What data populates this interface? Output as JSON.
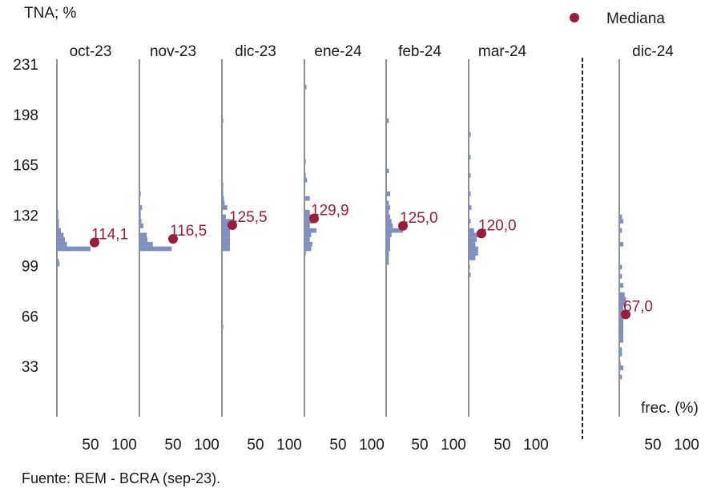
{
  "chart_data": {
    "type": "bar",
    "orientation": "horizontal-histogram",
    "ylabel": "TNA; %",
    "xlabel": "frec. (%)",
    "source": "Fuente: REM - BCRA (sep-23).",
    "y_ticks": [
      33,
      66,
      99,
      132,
      165,
      198,
      231
    ],
    "ylim": [
      0,
      231
    ],
    "x_ticks": [
      50,
      100
    ],
    "xlim": [
      0,
      100
    ],
    "legend": {
      "label": "Mediana",
      "position": "top-right"
    },
    "colors": {
      "bar": "#7f8fbe",
      "median": "#9b1b3d",
      "axis": "#222222"
    },
    "bin_width": 3,
    "panels": [
      {
        "label": "oct-23",
        "median": 114.1,
        "median_label": "114,1",
        "bins": [
          [
            100,
            4
          ],
          [
            102,
            3
          ],
          [
            110,
            50
          ],
          [
            113,
            15
          ],
          [
            116,
            12
          ],
          [
            119,
            10
          ],
          [
            122,
            6
          ],
          [
            125,
            3
          ],
          [
            128,
            3
          ],
          [
            131,
            2
          ],
          [
            134,
            2
          ]
        ]
      },
      {
        "label": "nov-23",
        "median": 116.5,
        "median_label": "116,5",
        "bins": [
          [
            110,
            48
          ],
          [
            113,
            20
          ],
          [
            116,
            12
          ],
          [
            119,
            11
          ],
          [
            125,
            6
          ],
          [
            128,
            3
          ],
          [
            131,
            2
          ],
          [
            134,
            2
          ],
          [
            137,
            4
          ],
          [
            146,
            2
          ]
        ]
      },
      {
        "label": "dic-23",
        "median": 125.5,
        "median_label": "125,5",
        "bins": [
          [
            59,
            2
          ],
          [
            110,
            12
          ],
          [
            113,
            12
          ],
          [
            116,
            12
          ],
          [
            119,
            12
          ],
          [
            122,
            12
          ],
          [
            125,
            10
          ],
          [
            128,
            18
          ],
          [
            131,
            6
          ],
          [
            137,
            8
          ],
          [
            140,
            4
          ],
          [
            143,
            3
          ],
          [
            146,
            2
          ],
          [
            149,
            2
          ],
          [
            152,
            2
          ],
          [
            194,
            2
          ]
        ]
      },
      {
        "label": "ene-24",
        "median": 129.9,
        "median_label": "129,9",
        "bins": [
          [
            107,
            2
          ],
          [
            110,
            10
          ],
          [
            113,
            12
          ],
          [
            116,
            8
          ],
          [
            119,
            10
          ],
          [
            122,
            18
          ],
          [
            125,
            8
          ],
          [
            128,
            12
          ],
          [
            131,
            14
          ],
          [
            134,
            8
          ],
          [
            143,
            8
          ],
          [
            155,
            4
          ],
          [
            158,
            2
          ],
          [
            167,
            2
          ],
          [
            216,
            3
          ]
        ]
      },
      {
        "label": "feb-24",
        "median": 125.0,
        "median_label": "125,0",
        "bins": [
          [
            101,
            4
          ],
          [
            104,
            4
          ],
          [
            107,
            4
          ],
          [
            110,
            6
          ],
          [
            113,
            6
          ],
          [
            116,
            6
          ],
          [
            119,
            8
          ],
          [
            122,
            25
          ],
          [
            125,
            10
          ],
          [
            128,
            8
          ],
          [
            131,
            6
          ],
          [
            134,
            4
          ],
          [
            137,
            6
          ],
          [
            140,
            4
          ],
          [
            146,
            6
          ],
          [
            161,
            4
          ],
          [
            194,
            4
          ]
        ]
      },
      {
        "label": "mar-24",
        "median": 120.0,
        "median_label": "120,0",
        "bins": [
          [
            93,
            3
          ],
          [
            98,
            2
          ],
          [
            104,
            10
          ],
          [
            107,
            14
          ],
          [
            110,
            14
          ],
          [
            113,
            10
          ],
          [
            116,
            12
          ],
          [
            119,
            18
          ],
          [
            122,
            8
          ],
          [
            128,
            3
          ],
          [
            137,
            4
          ],
          [
            146,
            3
          ],
          [
            158,
            3
          ],
          [
            170,
            3
          ],
          [
            185,
            3
          ]
        ]
      }
    ],
    "extra_panel": {
      "label": "dic-24",
      "median": 67.0,
      "median_label": "67,0",
      "bins": [
        [
          26,
          4
        ],
        [
          32,
          6
        ],
        [
          35,
          2
        ],
        [
          41,
          4
        ],
        [
          44,
          4
        ],
        [
          50,
          6
        ],
        [
          53,
          6
        ],
        [
          56,
          6
        ],
        [
          59,
          6
        ],
        [
          62,
          6
        ],
        [
          65,
          6
        ],
        [
          68,
          8
        ],
        [
          71,
          6
        ],
        [
          74,
          10
        ],
        [
          77,
          10
        ],
        [
          80,
          8
        ],
        [
          86,
          6
        ],
        [
          92,
          4
        ],
        [
          98,
          4
        ],
        [
          113,
          6
        ],
        [
          122,
          4
        ],
        [
          128,
          6
        ],
        [
          131,
          4
        ]
      ]
    }
  }
}
